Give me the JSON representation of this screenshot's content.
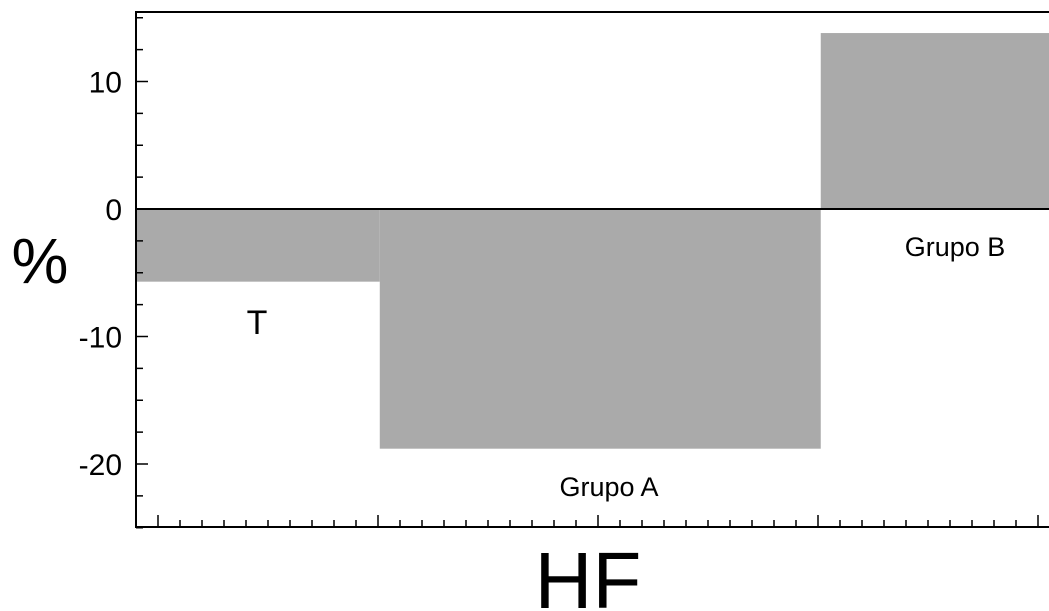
{
  "chart_data": {
    "type": "bar",
    "title": "",
    "xlabel": "HF",
    "ylabel": "%",
    "ylim": [
      -25,
      15
    ],
    "xlim": [
      0,
      10
    ],
    "grid": false,
    "bar_color": "#aaaaaa",
    "yticks": [
      {
        "value": 10,
        "label": "10"
      },
      {
        "value": 0,
        "label": "0"
      },
      {
        "value": -10,
        "label": "-10"
      },
      {
        "value": -20,
        "label": "-20"
      }
    ],
    "bars": [
      {
        "label": "T",
        "x0": 0,
        "x1": 2.67,
        "value": -5.7
      },
      {
        "label": "Grupo A",
        "x0": 2.67,
        "x1": 7.5,
        "value": -18.8
      },
      {
        "label": "Grupo B",
        "x0": 7.5,
        "x1": 10,
        "value": 13.8
      }
    ]
  }
}
